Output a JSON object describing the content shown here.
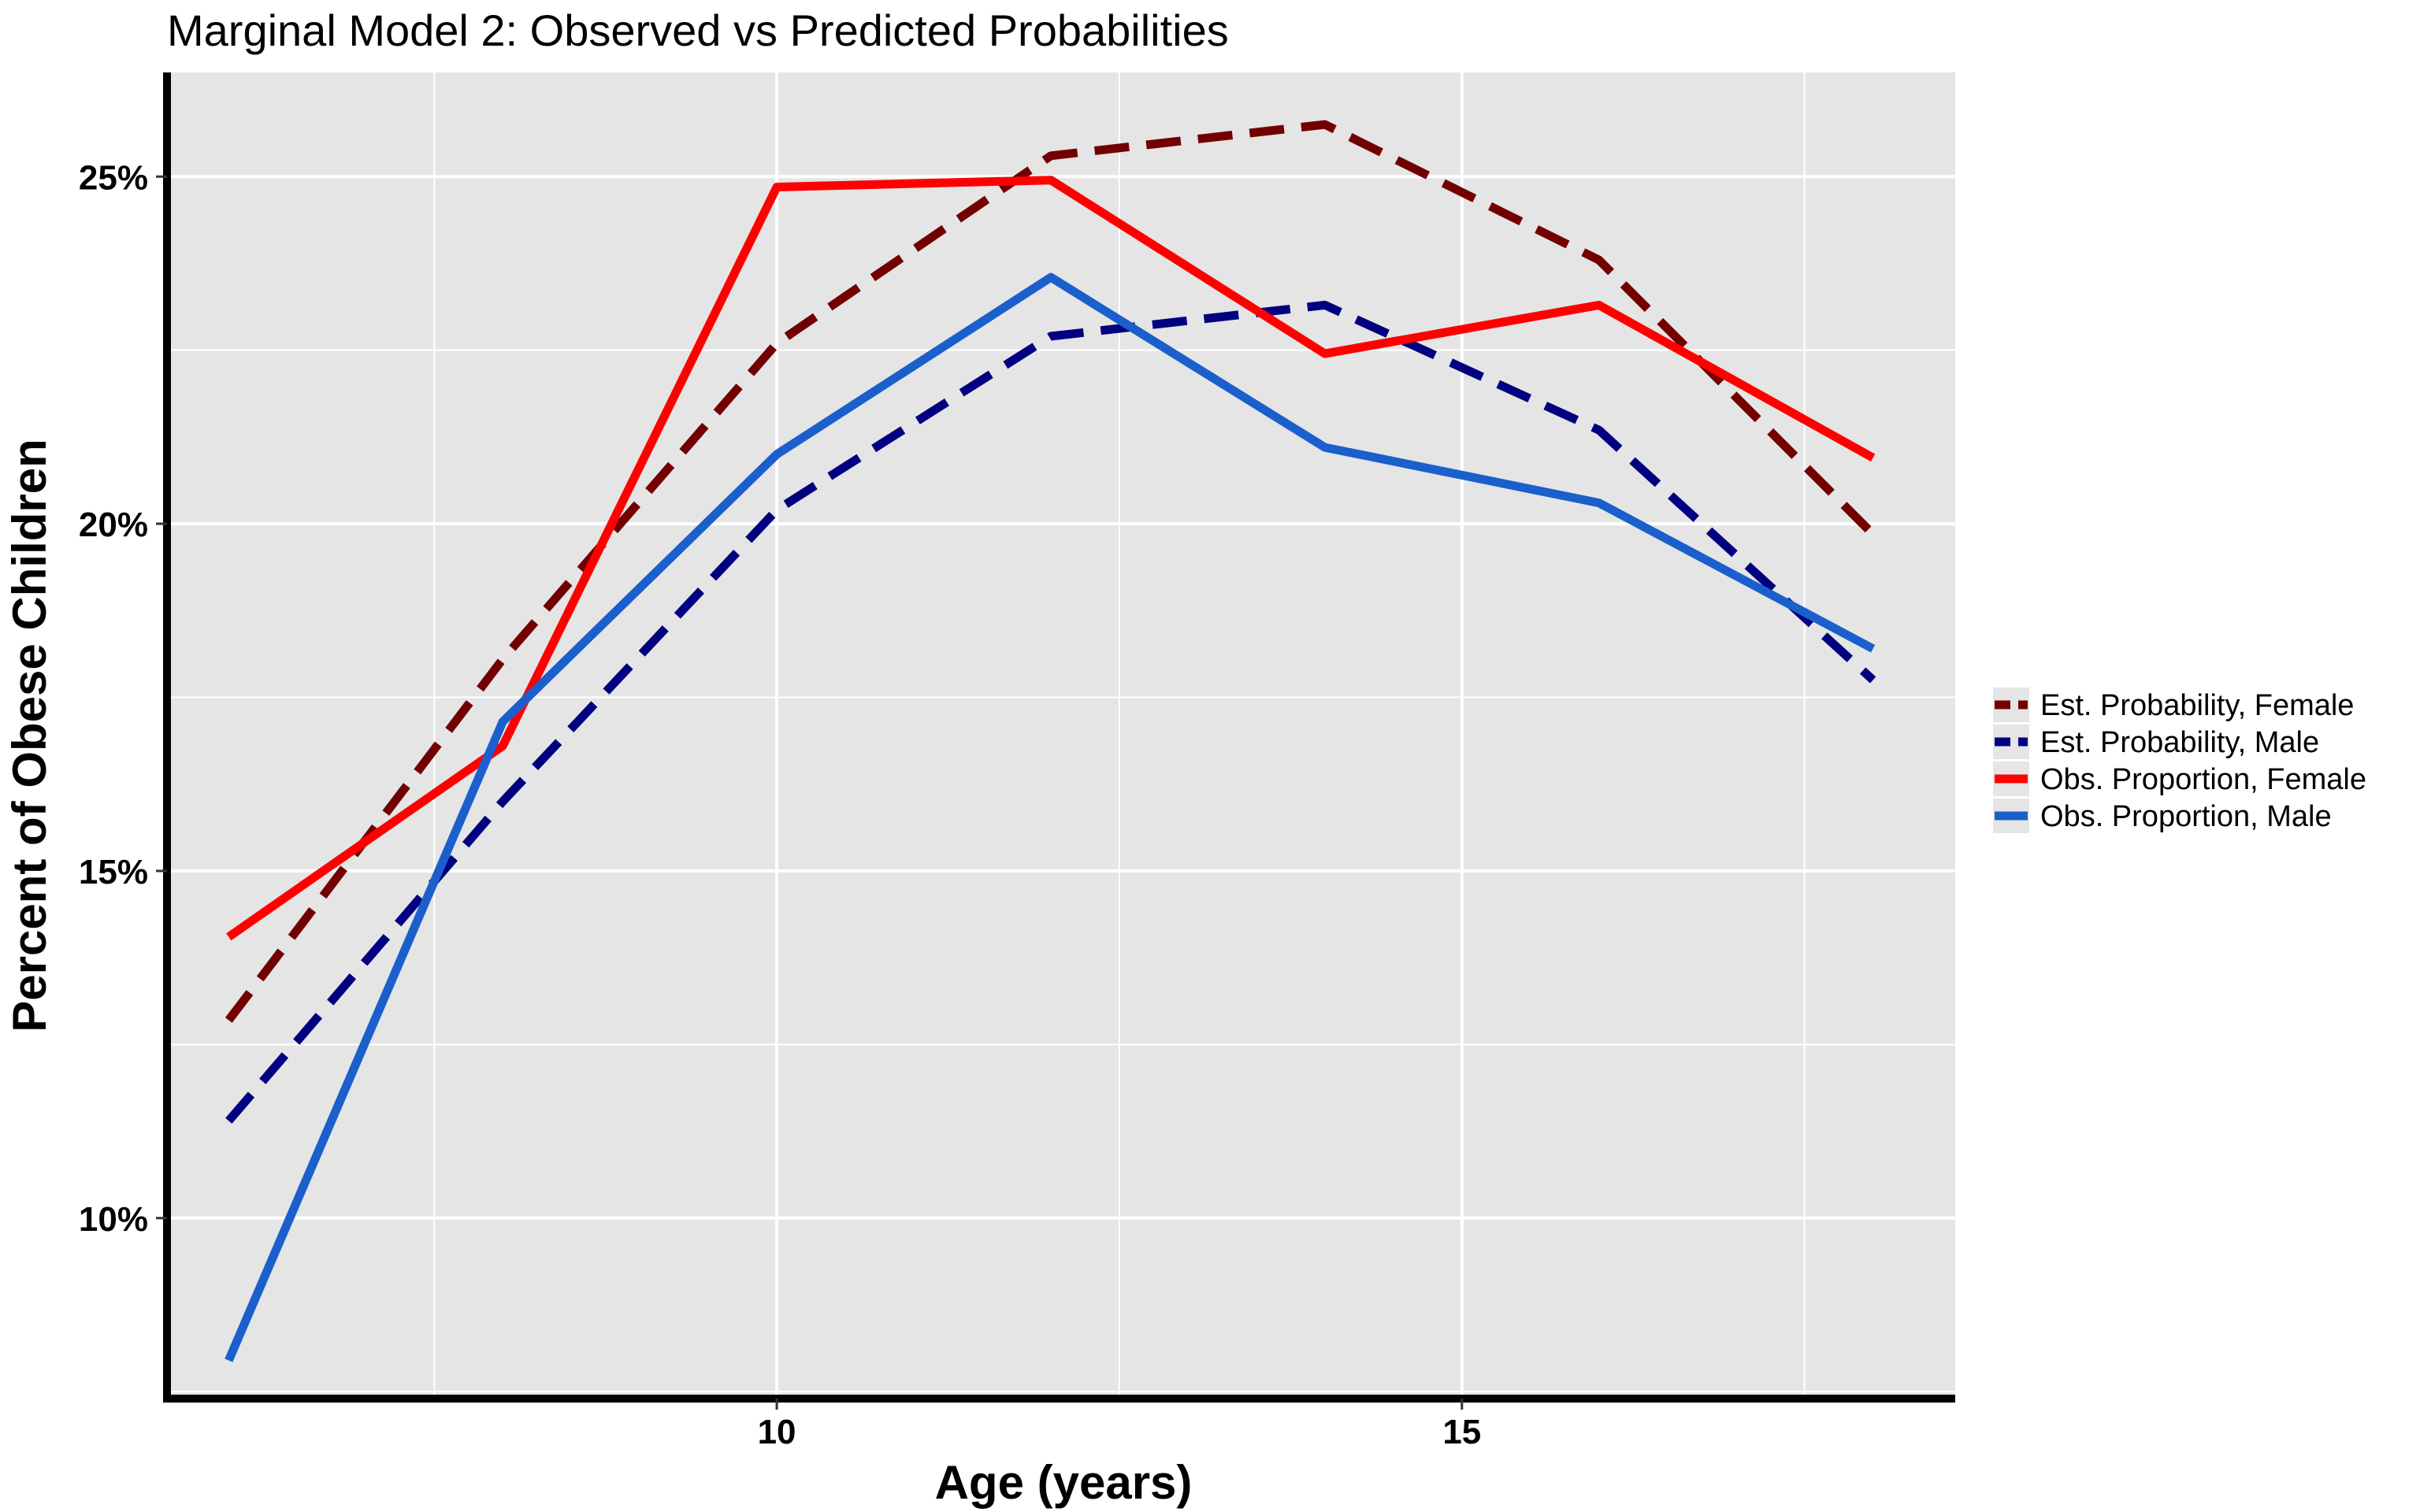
{
  "chart_data": {
    "type": "line",
    "title": "Marginal Model 2: Observed vs Predicted Probabilities",
    "xlabel": "Age (years)",
    "ylabel": "Percent of Obese Children",
    "x": [
      6,
      8,
      10,
      12,
      14,
      16,
      18
    ],
    "xlim": [
      5.55,
      18.6
    ],
    "ylim": [
      7.4,
      26.5
    ],
    "x_ticks": [
      10,
      15
    ],
    "x_tick_labels": [
      "10",
      "15"
    ],
    "y_ticks": [
      10,
      15,
      20,
      25
    ],
    "y_tick_labels": [
      "10%",
      "15%",
      "20%",
      "25%"
    ],
    "grid": true,
    "legend_position": "right",
    "background": "#e5e5e5",
    "series": [
      {
        "name": "Est. Probability, Female",
        "color": "#730000",
        "dashed": true,
        "values": [
          12.85,
          18.05,
          22.6,
          25.3,
          25.75,
          23.8,
          19.85
        ]
      },
      {
        "name": "Est. Probability, Male",
        "color": "#000080",
        "dashed": true,
        "values": [
          11.4,
          16.0,
          20.2,
          22.7,
          23.15,
          21.35,
          17.75
        ]
      },
      {
        "name": "Obs. Proportion, Female",
        "color": "#ff0000",
        "dashed": false,
        "values": [
          14.05,
          16.8,
          24.85,
          24.95,
          22.45,
          23.15,
          20.95
        ]
      },
      {
        "name": "Obs. Proportion, Male",
        "color": "#1a5fcc",
        "dashed": false,
        "values": [
          7.95,
          17.15,
          21.0,
          23.55,
          21.1,
          20.3,
          18.2
        ]
      }
    ]
  }
}
